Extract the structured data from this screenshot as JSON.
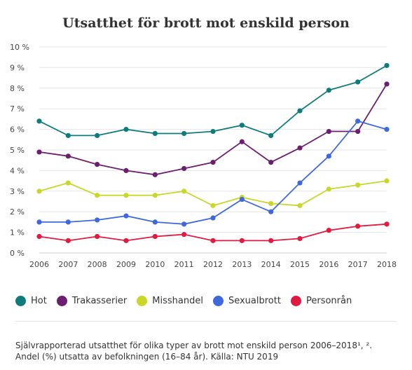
{
  "chart_data": {
    "type": "line",
    "title": "Utsatthet för brott mot enskild person",
    "x": [
      "2006",
      "2007",
      "2008",
      "2009",
      "2010",
      "2011",
      "2012",
      "2013",
      "2014",
      "2015",
      "2016",
      "2017",
      "2018"
    ],
    "ylim": [
      0,
      10
    ],
    "yticks": [
      "0 %",
      "1 %",
      "2 %",
      "3 %",
      "4 %",
      "5 %",
      "6 %",
      "7 %",
      "8 %",
      "9 %",
      "10 %"
    ],
    "grid": "horizontal",
    "legend_position": "bottom",
    "series": [
      {
        "name": "Hot",
        "color": "#0f7b7b",
        "values": [
          6.4,
          5.7,
          5.7,
          6.0,
          5.8,
          5.8,
          5.9,
          6.2,
          5.7,
          6.9,
          7.9,
          8.3,
          9.1
        ]
      },
      {
        "name": "Trakasserier",
        "color": "#6b1f6e",
        "values": [
          4.9,
          4.7,
          4.3,
          4.0,
          3.8,
          4.1,
          4.4,
          5.4,
          4.4,
          5.1,
          5.9,
          5.9,
          8.2
        ]
      },
      {
        "name": "Misshandel",
        "color": "#c9d62a",
        "values": [
          3.0,
          3.4,
          2.8,
          2.8,
          2.8,
          3.0,
          2.3,
          2.7,
          2.4,
          2.3,
          3.1,
          3.3,
          3.5
        ]
      },
      {
        "name": "Sexualbrott",
        "color": "#3e68dc",
        "values": [
          1.5,
          1.5,
          1.6,
          1.8,
          1.5,
          1.4,
          1.7,
          2.6,
          2.0,
          3.4,
          4.7,
          6.4,
          6.0
        ]
      },
      {
        "name": "Personrån",
        "color": "#e11a3f",
        "values": [
          0.8,
          0.6,
          0.8,
          0.6,
          0.8,
          0.9,
          0.6,
          0.6,
          0.6,
          0.7,
          1.1,
          1.3,
          1.4
        ]
      }
    ]
  },
  "caption": {
    "line1": "Självrapporterad utsatthet för olika typer av brott mot enskild person 2006–2018¹, ².",
    "line2": "Andel (%) utsatta av befolkningen (16–84 år). Källa: NTU 2019"
  }
}
